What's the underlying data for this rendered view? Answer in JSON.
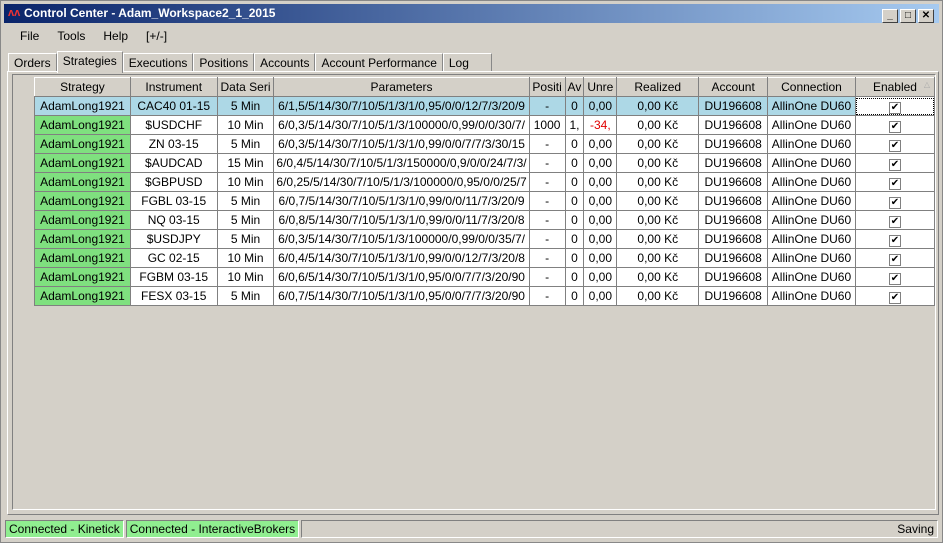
{
  "window": {
    "title": "Control Center - Adam_Workspace2_1_2015",
    "buttons": [
      "_",
      "□",
      "✕"
    ]
  },
  "menu": [
    "File",
    "Tools",
    "Help",
    "[+/-]"
  ],
  "tabs": [
    "Orders",
    "Strategies",
    "Executions",
    "Positions",
    "Accounts",
    "Account Performance",
    "Log"
  ],
  "active_tab": "Strategies",
  "columns": [
    "Strategy",
    "Instrument",
    "Data Seri",
    "Parameters",
    "Positi",
    "Av",
    "Unre",
    "Realized",
    "Account",
    "Connection",
    "Enabled"
  ],
  "rows": [
    [
      "AdamLong1921",
      "CAC40 01-15",
      "5 Min",
      "6/1,5/5/14/30/7/10/5/1/3/1/0,95/0/0/12/7/3/20/9",
      "-",
      "0",
      "0,00",
      "0,00 Kč",
      "DU196608",
      "AllinOne DU60",
      true
    ],
    [
      "AdamLong1921",
      "$USDCHF",
      "10 Min",
      "6/0,3/5/14/30/7/10/5/1/3/100000/0,99/0/0/30/7/",
      "1000",
      "1,",
      "-34,",
      "0,00 Kč",
      "DU196608",
      "AllinOne DU60",
      true
    ],
    [
      "AdamLong1921",
      "ZN 03-15",
      "5 Min",
      "6/0,3/5/14/30/7/10/5/1/3/1/0,99/0/0/7/7/3/30/15",
      "-",
      "0",
      "0,00",
      "0,00 Kč",
      "DU196608",
      "AllinOne DU60",
      true
    ],
    [
      "AdamLong1921",
      "$AUDCAD",
      "15 Min",
      "6/0,4/5/14/30/7/10/5/1/3/150000/0,9/0/0/24/7/3/",
      "-",
      "0",
      "0,00",
      "0,00 Kč",
      "DU196608",
      "AllinOne DU60",
      true
    ],
    [
      "AdamLong1921",
      "$GBPUSD",
      "10 Min",
      "6/0,25/5/14/30/7/10/5/1/3/100000/0,95/0/0/25/7",
      "-",
      "0",
      "0,00",
      "0,00 Kč",
      "DU196608",
      "AllinOne DU60",
      true
    ],
    [
      "AdamLong1921",
      "FGBL 03-15",
      "5 Min",
      "6/0,7/5/14/30/7/10/5/1/3/1/0,99/0/0/11/7/3/20/9",
      "-",
      "0",
      "0,00",
      "0,00 Kč",
      "DU196608",
      "AllinOne DU60",
      true
    ],
    [
      "AdamLong1921",
      "NQ 03-15",
      "5 Min",
      "6/0,8/5/14/30/7/10/5/1/3/1/0,99/0/0/11/7/3/20/8",
      "-",
      "0",
      "0,00",
      "0,00 Kč",
      "DU196608",
      "AllinOne DU60",
      true
    ],
    [
      "AdamLong1921",
      "$USDJPY",
      "5 Min",
      "6/0,3/5/14/30/7/10/5/1/3/100000/0,99/0/0/35/7/",
      "-",
      "0",
      "0,00",
      "0,00 Kč",
      "DU196608",
      "AllinOne DU60",
      true
    ],
    [
      "AdamLong1921",
      "GC 02-15",
      "10 Min",
      "6/0,4/5/14/30/7/10/5/1/3/1/0,99/0/0/12/7/3/20/8",
      "-",
      "0",
      "0,00",
      "0,00 Kč",
      "DU196608",
      "AllinOne DU60",
      true
    ],
    [
      "AdamLong1921",
      "FGBM 03-15",
      "10 Min",
      "6/0,6/5/14/30/7/10/5/1/3/1/0,95/0/0/7/7/3/20/90",
      "-",
      "0",
      "0,00",
      "0,00 Kč",
      "DU196608",
      "AllinOne DU60",
      true
    ],
    [
      "AdamLong1921",
      "FESX 03-15",
      "5 Min",
      "6/0,7/5/14/30/7/10/5/1/3/1/0,95/0/0/7/7/3/20/90",
      "-",
      "0",
      "0,00",
      "0,00 Kč",
      "DU196608",
      "AllinOne DU60",
      true
    ]
  ],
  "selected_row": 0,
  "status": {
    "kinetick": "Connected - Kinetick",
    "ib": "Connected - InteractiveBrokers",
    "right": "Saving"
  },
  "colors": {
    "strategy_cell": "#7fe07f",
    "selected": "#add8e6",
    "negative": "#e00000",
    "connected": "#90ee90"
  }
}
